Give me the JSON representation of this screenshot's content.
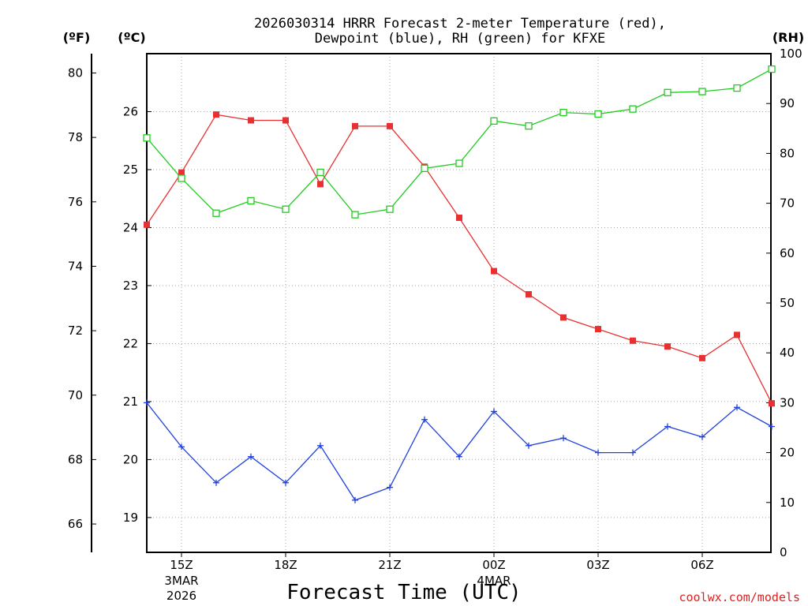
{
  "chart_data": {
    "type": "line",
    "title_line1": "2026030314 HRRR Forecast 2-meter Temperature (red),",
    "title_line2": "Dewpoint (blue), RH (green) for KFXE",
    "xlabel": "Forecast Time (UTC)",
    "credit": "coolwx.com/models",
    "units": {
      "fahrenheit": "(ºF)",
      "celsius": "(ºC)",
      "rh": "(RH)"
    },
    "x_hours": [
      14,
      15,
      16,
      17,
      18,
      19,
      20,
      21,
      22,
      23,
      24,
      25,
      26,
      27,
      28,
      29,
      30,
      31,
      32
    ],
    "x_ticks": [
      {
        "hour": 15,
        "label": "15Z",
        "sub": [
          "3MAR",
          "2026"
        ]
      },
      {
        "hour": 18,
        "label": "18Z",
        "sub": []
      },
      {
        "hour": 21,
        "label": "21Z",
        "sub": []
      },
      {
        "hour": 24,
        "label": "00Z",
        "sub": [
          "4MAR"
        ]
      },
      {
        "hour": 27,
        "label": "03Z",
        "sub": []
      },
      {
        "hour": 30,
        "label": "06Z",
        "sub": []
      }
    ],
    "celsius_range": [
      18.4,
      27.0
    ],
    "celsius_ticks": [
      19,
      20,
      21,
      22,
      23,
      24,
      25,
      26
    ],
    "fahrenheit_ticks": [
      66,
      68,
      70,
      72,
      74,
      76,
      78,
      80
    ],
    "rh_range": [
      0,
      100
    ],
    "rh_ticks": [
      0,
      10,
      20,
      30,
      40,
      50,
      60,
      70,
      80,
      90,
      100
    ],
    "grid": true,
    "series": [
      {
        "name": "Temperature",
        "color": "#e83030",
        "marker": "filled-square",
        "axis": "celsius",
        "values": [
          24.05,
          24.95,
          25.95,
          25.85,
          25.85,
          24.75,
          25.75,
          25.75,
          25.05,
          24.17,
          23.25,
          22.85,
          22.45,
          22.25,
          22.05,
          21.95,
          21.75,
          22.15,
          20.97
        ]
      },
      {
        "name": "Dewpoint",
        "color": "#2040e0",
        "marker": "plus",
        "axis": "celsius",
        "values": [
          20.98,
          20.22,
          19.6,
          20.05,
          19.6,
          20.24,
          19.3,
          19.52,
          20.69,
          20.05,
          20.83,
          20.24,
          20.37,
          20.12,
          20.12,
          20.57,
          20.39,
          20.9,
          20.57
        ]
      },
      {
        "name": "RH",
        "color": "#20cc20",
        "marker": "open-square",
        "axis": "rh",
        "values": [
          83.1,
          75.0,
          68.0,
          70.5,
          68.8,
          76.2,
          67.7,
          68.8,
          77.0,
          78.0,
          86.5,
          85.5,
          88.2,
          87.9,
          88.9,
          92.2,
          92.4,
          93.1,
          96.9
        ]
      }
    ]
  }
}
